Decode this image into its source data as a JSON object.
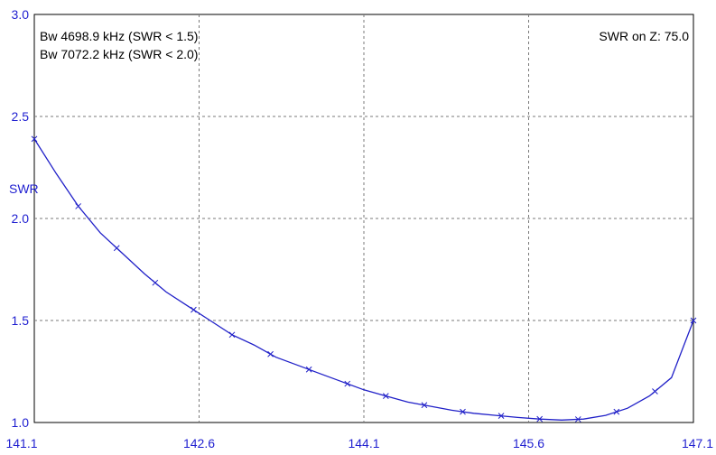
{
  "chart_data": {
    "type": "line",
    "title": "",
    "xlabel": "",
    "ylabel": "SWR",
    "xlim": [
      141.1,
      147.1
    ],
    "ylim": [
      1.0,
      3.0
    ],
    "x_ticks": [
      "141.1",
      "142.6",
      "144.1",
      "145.6",
      "147.1"
    ],
    "y_ticks": [
      "1.0",
      "1.5",
      "2.0",
      "2.5",
      "3.0"
    ],
    "grid": true,
    "annotations": {
      "bw1": "Bw 4698.9 kHz (SWR < 1.5)",
      "bw2": "Bw 7072.2 kHz (SWR < 2.0)",
      "swr_on_z": "SWR on Z: 75.0"
    },
    "series": [
      {
        "color": "#2020c8",
        "x": [
          141.1,
          141.3,
          141.5,
          141.7,
          141.9,
          142.1,
          142.3,
          142.5,
          142.7,
          142.9,
          143.1,
          143.3,
          143.5,
          143.7,
          143.9,
          144.1,
          144.3,
          144.5,
          144.7,
          144.9,
          145.1,
          145.3,
          145.5,
          145.7,
          145.9,
          146.1,
          146.3,
          146.5,
          146.7,
          146.9,
          147.1
        ],
        "y": [
          2.39,
          2.22,
          2.06,
          1.93,
          1.83,
          1.73,
          1.64,
          1.57,
          1.5,
          1.43,
          1.38,
          1.32,
          1.28,
          1.24,
          1.2,
          1.16,
          1.13,
          1.1,
          1.08,
          1.06,
          1.045,
          1.035,
          1.025,
          1.017,
          1.012,
          1.017,
          1.035,
          1.07,
          1.13,
          1.22,
          1.5
        ]
      }
    ],
    "marker_x": [
      141.1,
      141.5,
      141.85,
      142.2,
      142.55,
      142.9,
      143.25,
      143.6,
      143.95,
      144.3,
      144.65,
      145.0,
      145.35,
      145.7,
      146.05,
      146.4,
      146.75,
      147.1
    ]
  },
  "colors": {
    "axis_text": "#1f1fd0",
    "curve": "#2020c8",
    "grid": "#7a7a7a"
  }
}
